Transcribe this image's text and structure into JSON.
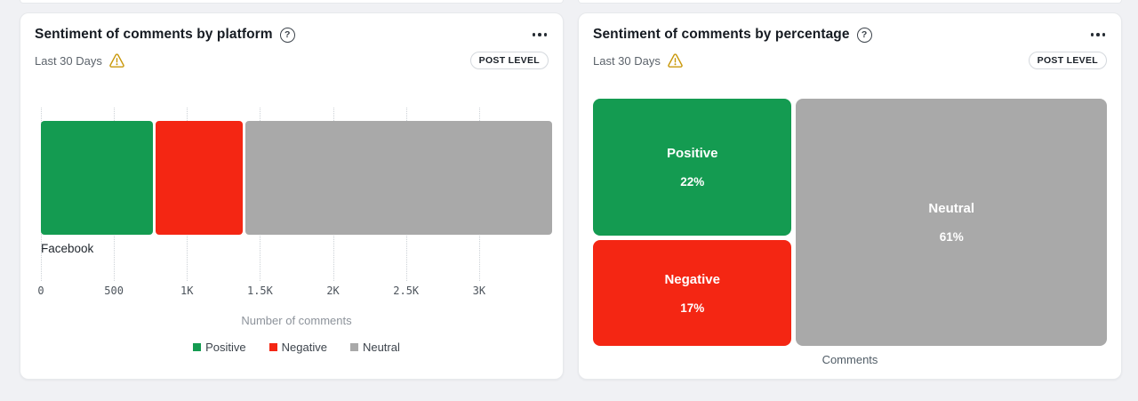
{
  "page": {
    "background": "#f0f1f4"
  },
  "icons": {
    "help_glyph": "?"
  },
  "cards": [
    {
      "title": "Sentiment of comments by platform",
      "timeframe": "Last 30 Days",
      "badge": "POST LEVEL"
    },
    {
      "title": "Sentiment of comments by percentage",
      "timeframe": "Last 30 Days",
      "badge": "POST LEVEL"
    }
  ],
  "chart_data": [
    {
      "type": "bar",
      "orientation": "horizontal",
      "stacked": true,
      "categories": [
        "Facebook"
      ],
      "series": [
        {
          "name": "Positive",
          "color": "#149B51",
          "values": [
            770
          ]
        },
        {
          "name": "Negative",
          "color": "#F42613",
          "values": [
            595
          ]
        },
        {
          "name": "Neutral",
          "color": "#A9A9A9",
          "values": [
            2100
          ]
        }
      ],
      "xlabel": "Number of comments",
      "xlim": [
        0,
        3500
      ],
      "xticks": [
        0,
        500,
        1000,
        1500,
        2000,
        2500,
        3000
      ],
      "xtick_labels": [
        "0",
        "500",
        "1K",
        "1.5K",
        "2K",
        "2.5K",
        "3K"
      ],
      "grid": "vertical-dotted",
      "legend": [
        "Positive",
        "Negative",
        "Neutral"
      ],
      "legend_position": "bottom"
    },
    {
      "type": "treemap",
      "items": [
        {
          "name": "Positive",
          "pct": 22,
          "color": "#149B51"
        },
        {
          "name": "Negative",
          "pct": 17,
          "color": "#F42613"
        },
        {
          "name": "Neutral",
          "pct": 61,
          "color": "#A9A9A9"
        }
      ],
      "xlabel": "Comments"
    }
  ]
}
